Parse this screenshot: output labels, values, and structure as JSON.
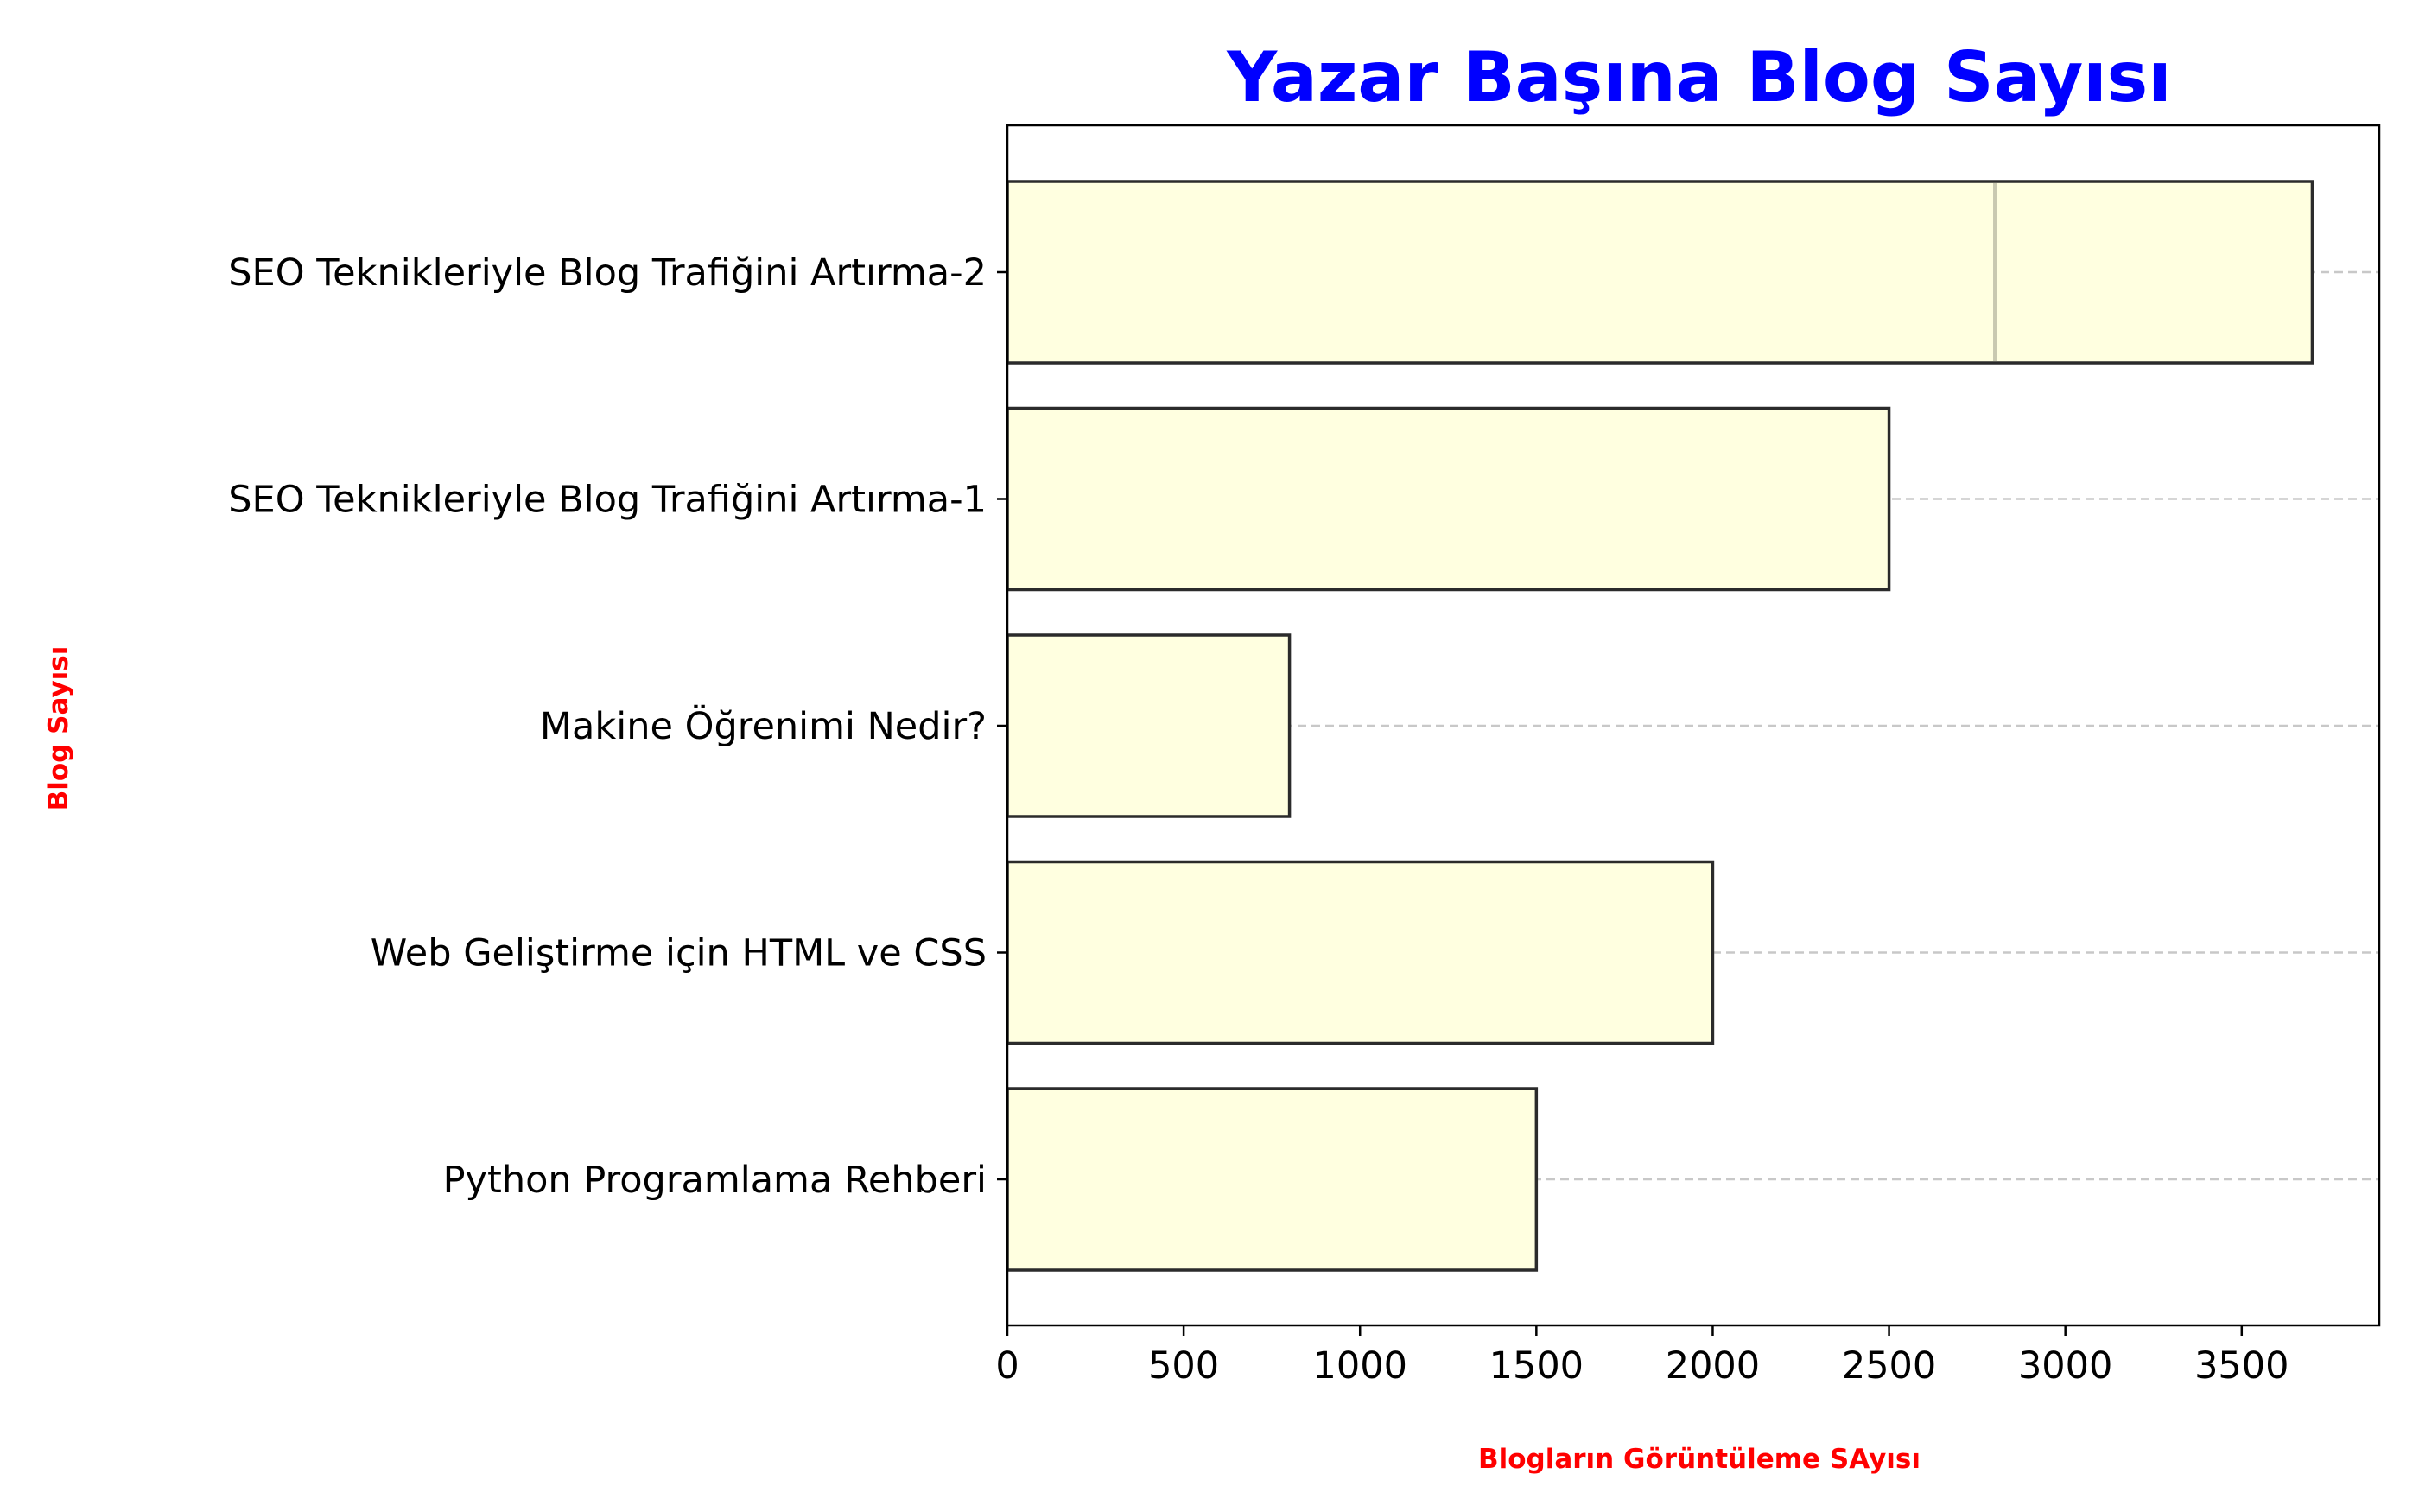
{
  "chart_data": {
    "type": "bar",
    "orientation": "horizontal",
    "title": "Yazar Başına Blog Sayısı",
    "xlabel": "Blogların Görüntüleme SAyısı",
    "ylabel": "Blog Sayısı",
    "categories": [
      "Python Programlama Rehberi",
      "Web Geliştirme için HTML ve CSS",
      "Makine Öğrenimi Nedir?",
      "SEO Teknikleriyle Blog Trafiğini Artırma-1",
      "SEO Teknikleriyle Blog Trafiğini Artırma-2"
    ],
    "values": [
      1500,
      2000,
      800,
      2500,
      3700
    ],
    "secondary_marker": {
      "category": "SEO Teknikleriyle Blog Trafiğini Artırma-2",
      "value": 2800
    },
    "xlim": [
      0,
      3890
    ],
    "xticks": [
      0,
      500,
      1000,
      1500,
      2000,
      2500,
      3000,
      3500
    ],
    "grid": {
      "axis": "y",
      "style": "dashed"
    },
    "legend": "none",
    "colors": {
      "title": "#0000ff",
      "axis_labels": "#ff0000",
      "bar_fill": "#ffffe0",
      "bar_edge": "#2b2b2b",
      "grid": "#c8c8c8"
    }
  }
}
